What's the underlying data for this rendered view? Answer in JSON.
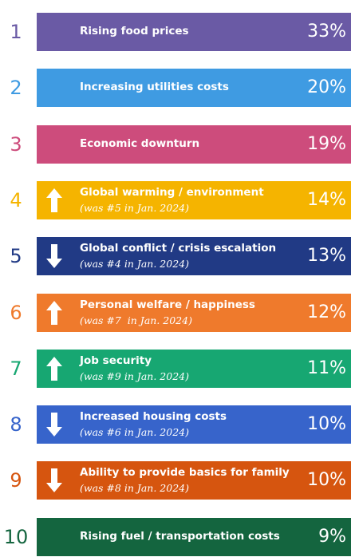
{
  "items": [
    {
      "rank": 1,
      "label": "Rising food prices",
      "percent": "33%",
      "color": "#6a5aa5"
    },
    {
      "rank": 2,
      "label": "Increasing utilities costs",
      "percent": "20%",
      "color": "#3f9be2"
    },
    {
      "rank": 3,
      "label": "Economic downturn",
      "percent": "19%",
      "color": "#cd4c7c"
    },
    {
      "rank": 4,
      "label": "Global warming / environment",
      "note": "(was #5 in Jan. 2024)",
      "percent": "14%",
      "color": "#f5b400",
      "arrow": "up"
    },
    {
      "rank": 5,
      "label": "Global conflict / crisis escalation",
      "note": "(was #4 in Jan. 2024)",
      "percent": "13%",
      "color": "#213a85",
      "arrow": "down"
    },
    {
      "rank": 6,
      "label": "Personal welfare / happiness",
      "note": "(was #7  in Jan. 2024)",
      "percent": "12%",
      "color": "#ef7a2c",
      "arrow": "up"
    },
    {
      "rank": 7,
      "label": "Job security",
      "note": "(was #9 in Jan. 2024)",
      "percent": "11%",
      "color": "#17a772",
      "arrow": "up"
    },
    {
      "rank": 8,
      "label": "Increased housing costs",
      "note": "(was #6 in Jan. 2024)",
      "percent": "10%",
      "color": "#3764cb",
      "arrow": "down"
    },
    {
      "rank": 9,
      "label": "Ability to provide basics for family",
      "note": "(was #8 in Jan. 2024)",
      "percent": "10%",
      "color": "#d6550f",
      "arrow": "down"
    },
    {
      "rank": 10,
      "label": "Rising fuel / transportation costs",
      "percent": "9%",
      "color": "#14653f"
    }
  ]
}
